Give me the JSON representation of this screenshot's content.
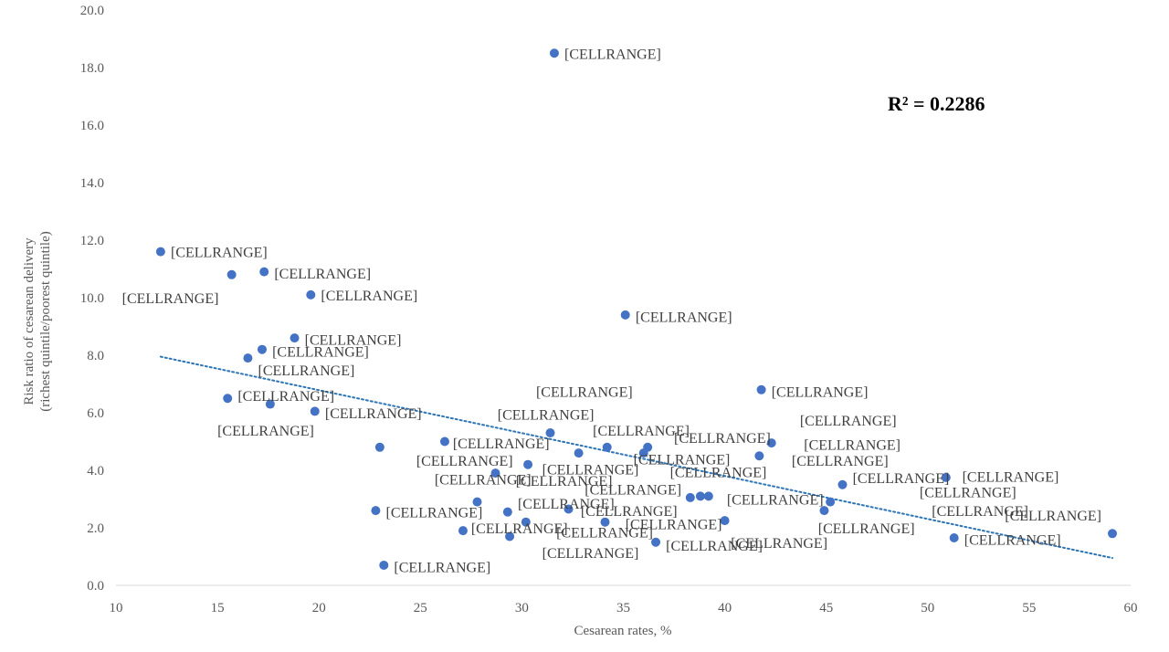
{
  "chart_data": {
    "type": "scatter",
    "xlabel": "Cesarean rates, %",
    "ylabel_lines": [
      "Risk ratio of cesarean delivery",
      "(richest quintile/poorest quintile)"
    ],
    "xlim": [
      10,
      60
    ],
    "ylim": [
      0,
      20
    ],
    "xticks": [
      10,
      15,
      20,
      25,
      30,
      35,
      40,
      45,
      50,
      55,
      60
    ],
    "yticks": [
      "0.0",
      "2.0",
      "4.0",
      "6.0",
      "8.0",
      "10.0",
      "12.0",
      "14.0",
      "16.0",
      "18.0",
      "20.0"
    ],
    "grid": false,
    "legend": "none",
    "point_color": "#4472C4",
    "trendline": {
      "type": "linear",
      "x": [
        12.2,
        59.1
      ],
      "y": [
        7.95,
        0.95
      ],
      "color": "#2E75B6",
      "style": "dotted"
    },
    "annotation": "R² = 0.2286",
    "point_label": "[CELLRANGE]",
    "points": [
      {
        "x": 12.2,
        "y": 11.6
      },
      {
        "x": 15.7,
        "y": 10.8
      },
      {
        "x": 17.3,
        "y": 10.9
      },
      {
        "x": 19.6,
        "y": 10.1
      },
      {
        "x": 18.8,
        "y": 8.6
      },
      {
        "x": 17.2,
        "y": 8.2
      },
      {
        "x": 16.5,
        "y": 7.9
      },
      {
        "x": 15.5,
        "y": 6.5
      },
      {
        "x": 17.6,
        "y": 6.3
      },
      {
        "x": 19.8,
        "y": 6.05
      },
      {
        "x": 31.6,
        "y": 18.5
      },
      {
        "x": 35.1,
        "y": 9.4
      },
      {
        "x": 41.8,
        "y": 6.8
      },
      {
        "x": 23.0,
        "y": 4.8
      },
      {
        "x": 26.2,
        "y": 5.0
      },
      {
        "x": 31.4,
        "y": 5.3
      },
      {
        "x": 32.8,
        "y": 4.6
      },
      {
        "x": 34.2,
        "y": 4.8
      },
      {
        "x": 36.0,
        "y": 4.6
      },
      {
        "x": 36.2,
        "y": 4.8
      },
      {
        "x": 41.7,
        "y": 4.5
      },
      {
        "x": 42.3,
        "y": 4.95
      },
      {
        "x": 28.7,
        "y": 3.9
      },
      {
        "x": 30.3,
        "y": 4.2
      },
      {
        "x": 38.3,
        "y": 3.05
      },
      {
        "x": 38.8,
        "y": 3.1
      },
      {
        "x": 39.2,
        "y": 3.1
      },
      {
        "x": 45.2,
        "y": 2.9
      },
      {
        "x": 45.8,
        "y": 3.5
      },
      {
        "x": 50.9,
        "y": 3.75
      },
      {
        "x": 22.8,
        "y": 2.6
      },
      {
        "x": 27.8,
        "y": 2.9
      },
      {
        "x": 29.3,
        "y": 2.55
      },
      {
        "x": 32.3,
        "y": 2.65
      },
      {
        "x": 44.9,
        "y": 2.6
      },
      {
        "x": 27.1,
        "y": 1.9
      },
      {
        "x": 29.4,
        "y": 1.7
      },
      {
        "x": 30.2,
        "y": 2.2
      },
      {
        "x": 34.1,
        "y": 2.2
      },
      {
        "x": 36.6,
        "y": 1.5
      },
      {
        "x": 40.0,
        "y": 2.25
      },
      {
        "x": 51.3,
        "y": 1.65
      },
      {
        "x": 59.1,
        "y": 1.8
      },
      {
        "x": 23.2,
        "y": 0.7
      }
    ],
    "labels": [
      {
        "x": 12.7,
        "y": 11.6
      },
      {
        "x": 17.8,
        "y": 10.85
      },
      {
        "x": 20.1,
        "y": 10.1
      },
      {
        "x": 10.3,
        "y": 10.0
      },
      {
        "x": 19.3,
        "y": 8.55
      },
      {
        "x": 17.7,
        "y": 8.15
      },
      {
        "x": 17.0,
        "y": 7.5
      },
      {
        "x": 16.0,
        "y": 6.6
      },
      {
        "x": 20.3,
        "y": 6.0
      },
      {
        "x": 15.0,
        "y": 5.4
      },
      {
        "x": 32.1,
        "y": 18.5
      },
      {
        "x": 35.6,
        "y": 9.35
      },
      {
        "x": 42.3,
        "y": 6.75
      },
      {
        "x": 30.7,
        "y": 6.75
      },
      {
        "x": 28.8,
        "y": 5.95
      },
      {
        "x": 33.5,
        "y": 5.4
      },
      {
        "x": 37.5,
        "y": 5.15
      },
      {
        "x": 43.7,
        "y": 5.75
      },
      {
        "x": 26.6,
        "y": 4.95
      },
      {
        "x": 24.8,
        "y": 4.35
      },
      {
        "x": 35.5,
        "y": 4.4
      },
      {
        "x": 43.9,
        "y": 4.9
      },
      {
        "x": 43.3,
        "y": 4.35
      },
      {
        "x": 31.0,
        "y": 4.05
      },
      {
        "x": 37.3,
        "y": 3.95
      },
      {
        "x": 25.7,
        "y": 3.7
      },
      {
        "x": 29.7,
        "y": 3.65
      },
      {
        "x": 33.1,
        "y": 3.35
      },
      {
        "x": 46.3,
        "y": 3.75
      },
      {
        "x": 51.7,
        "y": 3.8
      },
      {
        "x": 49.6,
        "y": 3.25
      },
      {
        "x": 40.1,
        "y": 3.0
      },
      {
        "x": 29.8,
        "y": 2.85
      },
      {
        "x": 23.3,
        "y": 2.55
      },
      {
        "x": 32.9,
        "y": 2.6
      },
      {
        "x": 50.2,
        "y": 2.6
      },
      {
        "x": 53.8,
        "y": 2.45
      },
      {
        "x": 35.1,
        "y": 2.15
      },
      {
        "x": 27.5,
        "y": 2.0
      },
      {
        "x": 31.7,
        "y": 1.85
      },
      {
        "x": 44.6,
        "y": 2.0
      },
      {
        "x": 31.0,
        "y": 1.15
      },
      {
        "x": 37.1,
        "y": 1.4
      },
      {
        "x": 40.3,
        "y": 1.5
      },
      {
        "x": 51.8,
        "y": 1.6
      },
      {
        "x": 23.7,
        "y": 0.65
      }
    ]
  }
}
